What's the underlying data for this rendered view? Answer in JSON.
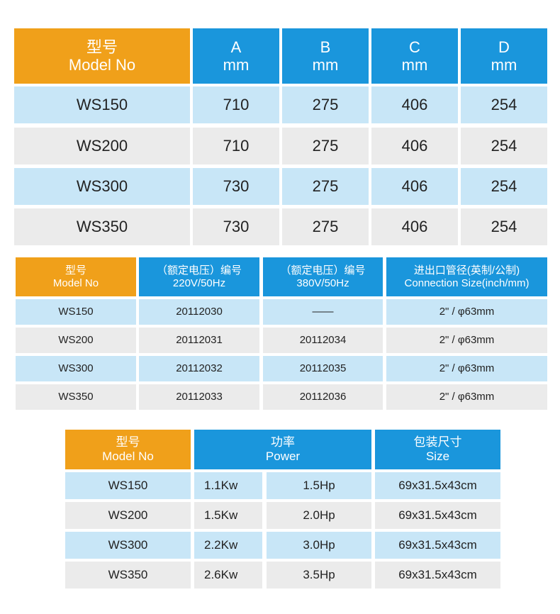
{
  "table1": {
    "header": [
      [
        "型号",
        "Model No"
      ],
      [
        "A",
        "mm"
      ],
      [
        "B",
        "mm"
      ],
      [
        "C",
        "mm"
      ],
      [
        "D",
        "mm"
      ]
    ],
    "rows": [
      [
        "WS150",
        "710",
        "275",
        "406",
        "254"
      ],
      [
        "WS200",
        "710",
        "275",
        "406",
        "254"
      ],
      [
        "WS300",
        "730",
        "275",
        "406",
        "254"
      ],
      [
        "WS350",
        "730",
        "275",
        "406",
        "254"
      ]
    ]
  },
  "table2": {
    "header": [
      [
        "型号",
        "Model No"
      ],
      [
        "（额定电压）编号",
        "220V/50Hz"
      ],
      [
        "（额定电压）编号",
        "380V/50Hz"
      ],
      [
        "进出口管径(英制/公制)",
        "Connection Size(inch/mm)"
      ]
    ],
    "rows": [
      [
        "WS150",
        "20112030",
        "——",
        "2\" / φ63mm"
      ],
      [
        "WS200",
        "20112031",
        "20112034",
        "2\" / φ63mm"
      ],
      [
        "WS300",
        "20112032",
        "20112035",
        "2\" / φ63mm"
      ],
      [
        "WS350",
        "20112033",
        "20112036",
        "2\" / φ63mm"
      ]
    ]
  },
  "table3": {
    "header": [
      [
        "型号",
        "Model No"
      ],
      [
        "功率",
        "Power"
      ],
      [
        "包装尺寸",
        "Size"
      ]
    ],
    "rows": [
      [
        "WS150",
        "1.1Kw",
        "1.5Hp",
        "69x31.5x43cm"
      ],
      [
        "WS200",
        "1.5Kw",
        "2.0Hp",
        "69x31.5x43cm"
      ],
      [
        "WS300",
        "2.2Kw",
        "3.0Hp",
        "69x31.5x43cm"
      ],
      [
        "WS350",
        "2.6Kw",
        "3.5Hp",
        "69x31.5x43cm"
      ]
    ]
  }
}
